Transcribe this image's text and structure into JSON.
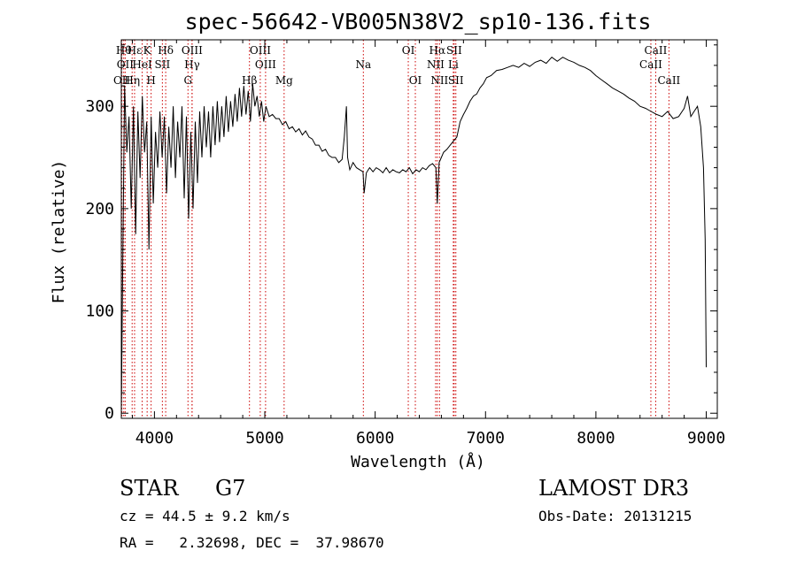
{
  "chart_data": {
    "type": "line",
    "title": "spec-56642-VB005N38V2_sp10-136.fits",
    "xlabel": "Wavelength (Å)",
    "ylabel": "Flux (relative)",
    "xlim": [
      3700,
      9100
    ],
    "ylim": [
      -5,
      365
    ],
    "xticks": [
      4000,
      5000,
      6000,
      7000,
      8000,
      9000
    ],
    "yticks": [
      0,
      100,
      200,
      300
    ],
    "grid": false,
    "series": [
      {
        "name": "spectrum",
        "color": "#000000",
        "x": [
          3700,
          3710,
          3730,
          3750,
          3770,
          3790,
          3810,
          3830,
          3850,
          3870,
          3890,
          3910,
          3930,
          3950,
          3970,
          3990,
          4010,
          4030,
          4050,
          4070,
          4090,
          4110,
          4130,
          4150,
          4170,
          4190,
          4210,
          4230,
          4250,
          4270,
          4290,
          4310,
          4330,
          4350,
          4370,
          4390,
          4410,
          4430,
          4450,
          4470,
          4490,
          4510,
          4530,
          4550,
          4570,
          4590,
          4610,
          4630,
          4650,
          4670,
          4690,
          4710,
          4730,
          4750,
          4770,
          4790,
          4810,
          4830,
          4850,
          4870,
          4890,
          4910,
          4930,
          4950,
          4970,
          4990,
          5010,
          5040,
          5070,
          5100,
          5130,
          5160,
          5190,
          5220,
          5250,
          5280,
          5310,
          5340,
          5370,
          5400,
          5430,
          5460,
          5490,
          5520,
          5550,
          5580,
          5610,
          5640,
          5670,
          5700,
          5720,
          5740,
          5750,
          5770,
          5800,
          5830,
          5860,
          5890,
          5900,
          5920,
          5950,
          5980,
          6010,
          6040,
          6070,
          6100,
          6130,
          6160,
          6190,
          6220,
          6250,
          6280,
          6310,
          6340,
          6370,
          6400,
          6430,
          6460,
          6490,
          6520,
          6550,
          6563,
          6580,
          6600,
          6620,
          6650,
          6680,
          6710,
          6740,
          6770,
          6800,
          6830,
          6860,
          6890,
          6920,
          6950,
          6980,
          7010,
          7050,
          7100,
          7150,
          7200,
          7250,
          7300,
          7350,
          7400,
          7450,
          7500,
          7550,
          7600,
          7650,
          7700,
          7750,
          7800,
          7850,
          7900,
          7950,
          8000,
          8050,
          8100,
          8150,
          8200,
          8250,
          8300,
          8350,
          8400,
          8450,
          8500,
          8550,
          8600,
          8650,
          8700,
          8750,
          8800,
          8830,
          8860,
          8890,
          8920,
          8950,
          8975,
          8990,
          9000
        ],
        "y": [
          0,
          110,
          320,
          255,
          290,
          200,
          300,
          175,
          295,
          230,
          310,
          255,
          285,
          160,
          290,
          205,
          275,
          240,
          295,
          250,
          290,
          215,
          280,
          240,
          300,
          230,
          285,
          250,
          300,
          210,
          290,
          190,
          275,
          200,
          285,
          225,
          295,
          250,
          300,
          260,
          295,
          250,
          300,
          262,
          305,
          265,
          300,
          270,
          310,
          275,
          305,
          280,
          312,
          285,
          318,
          290,
          320,
          292,
          315,
          285,
          322,
          300,
          310,
          290,
          305,
          285,
          300,
          290,
          292,
          288,
          288,
          282,
          285,
          278,
          280,
          275,
          278,
          272,
          276,
          270,
          268,
          262,
          262,
          256,
          258,
          252,
          250,
          250,
          245,
          248,
          270,
          300,
          250,
          238,
          245,
          240,
          238,
          236,
          215,
          235,
          240,
          236,
          240,
          238,
          235,
          240,
          235,
          238,
          236,
          235,
          238,
          236,
          240,
          234,
          238,
          236,
          240,
          238,
          242,
          244,
          240,
          205,
          245,
          250,
          255,
          258,
          262,
          266,
          270,
          285,
          292,
          298,
          305,
          310,
          312,
          318,
          322,
          328,
          330,
          335,
          336,
          338,
          340,
          338,
          342,
          339,
          343,
          345,
          342,
          348,
          344,
          348,
          345,
          343,
          340,
          338,
          335,
          330,
          326,
          322,
          318,
          315,
          312,
          308,
          305,
          300,
          298,
          295,
          292,
          290,
          295,
          288,
          290,
          298,
          310,
          290,
          295,
          300,
          280,
          240,
          170,
          45
        ]
      }
    ],
    "lines": [
      {
        "x": 3705,
        "label": "OII",
        "row": 3
      },
      {
        "x": 3722,
        "label": "Hθ",
        "row": 1
      },
      {
        "x": 3735,
        "label": "OII",
        "row": 2
      },
      {
        "x": 3798,
        "label": "Hη",
        "row": 3
      },
      {
        "x": 3820,
        "label": "Hε",
        "row": 1
      },
      {
        "x": 3889,
        "label": "HeI",
        "row": 2
      },
      {
        "x": 3934,
        "label": "K",
        "row": 1
      },
      {
        "x": 3970,
        "label": "H",
        "row": 3
      },
      {
        "x": 4072,
        "label": "SII",
        "row": 2
      },
      {
        "x": 4102,
        "label": "Hδ",
        "row": 1
      },
      {
        "x": 4341,
        "label": "OIII",
        "row": 1
      },
      {
        "x": 4341,
        "label": "Hγ",
        "row": 2
      },
      {
        "x": 4304,
        "label": "G",
        "row": 3
      },
      {
        "x": 4861,
        "label": "Hβ",
        "row": 3
      },
      {
        "x": 4959,
        "label": "OIII",
        "row": 1
      },
      {
        "x": 5007,
        "label": "OIII",
        "row": 2
      },
      {
        "x": 5175,
        "label": "Mg",
        "row": 3
      },
      {
        "x": 5893,
        "label": "Na",
        "row": 2
      },
      {
        "x": 6300,
        "label": "OI",
        "row": 1
      },
      {
        "x": 6364,
        "label": "OI",
        "row": 3
      },
      {
        "x": 6548,
        "label": "NII",
        "row": 2
      },
      {
        "x": 6563,
        "label": "Hα",
        "row": 1
      },
      {
        "x": 6583,
        "label": "NII",
        "row": 3
      },
      {
        "x": 6708,
        "label": "Li",
        "row": 2
      },
      {
        "x": 6716,
        "label": "SII",
        "row": 1
      },
      {
        "x": 6731,
        "label": "SII",
        "row": 3
      },
      {
        "x": 8498,
        "label": "CaII",
        "row": 2
      },
      {
        "x": 8542,
        "label": "CaII",
        "row": 1
      },
      {
        "x": 8662,
        "label": "CaII",
        "row": 3
      }
    ],
    "line_color": "#cc0000"
  },
  "info": {
    "classification": "STAR",
    "subclass": "G7",
    "cz": "cz = 44.5 ± 9.2 km/s",
    "coords": "RA =   2.32698, DEC =  37.98670",
    "survey": "LAMOST DR3",
    "obsdate": "Obs-Date: 20131215"
  }
}
